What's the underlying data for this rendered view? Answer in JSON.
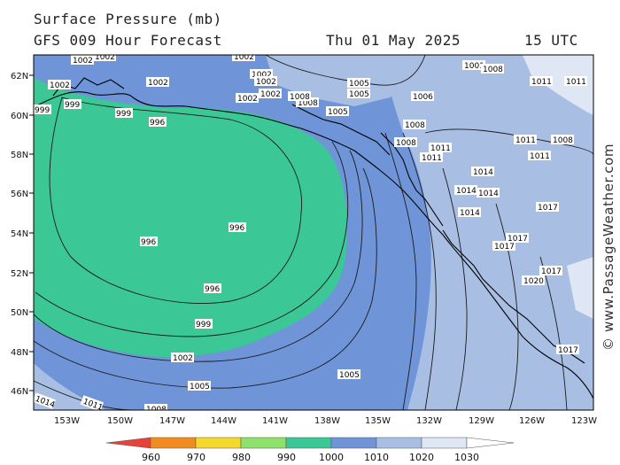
{
  "header": {
    "title": "Surface Pressure (mb)",
    "model": "GFS 009 Hour Forecast",
    "date": "Thu 01 May 2025",
    "time": "15 UTC"
  },
  "credit": "© www.PassageWeather.com",
  "axes": {
    "lat_labels": [
      "62N",
      "60N",
      "58N",
      "56N",
      "54N",
      "52N",
      "50N",
      "48N",
      "46N"
    ],
    "lon_labels": [
      "153W",
      "150W",
      "147W",
      "144W",
      "141W",
      "138W",
      "135W",
      "132W",
      "129W",
      "126W",
      "123W"
    ]
  },
  "colorbar": {
    "labels": [
      "960",
      "970",
      "980",
      "990",
      "1000",
      "1010",
      "1020",
      "1030"
    ],
    "colors": [
      "#e8413a",
      "#f28c1e",
      "#f4d92c",
      "#8ee26c",
      "#3cc797",
      "#6f95d8",
      "#a8bfe3",
      "#dfe6f4"
    ]
  },
  "isobars": [
    {
      "text": "1002"
    },
    {
      "text": "1002"
    },
    {
      "text": "1002"
    },
    {
      "text": "1002"
    },
    {
      "text": "1002"
    },
    {
      "text": "1002"
    },
    {
      "text": "1002"
    },
    {
      "text": "1002"
    },
    {
      "text": "1002"
    },
    {
      "text": "1005"
    },
    {
      "text": "1005"
    },
    {
      "text": "1005"
    },
    {
      "text": "1006"
    },
    {
      "text": "1008"
    },
    {
      "text": "1008"
    },
    {
      "text": "1008"
    },
    {
      "text": "1008"
    },
    {
      "text": "1011"
    },
    {
      "text": "1011"
    },
    {
      "text": "1011"
    },
    {
      "text": "1011"
    },
    {
      "text": "1014"
    },
    {
      "text": "1014"
    },
    {
      "text": "1014"
    },
    {
      "text": "1014"
    },
    {
      "text": "1017"
    },
    {
      "text": "1017"
    },
    {
      "text": "1017"
    },
    {
      "text": "1017"
    },
    {
      "text": "1017"
    },
    {
      "text": "1020"
    },
    {
      "text": "999"
    },
    {
      "text": "999"
    },
    {
      "text": "999"
    },
    {
      "text": "996"
    },
    {
      "text": "996"
    },
    {
      "text": "996"
    },
    {
      "text": "996"
    },
    {
      "text": "999"
    },
    {
      "text": "1002"
    },
    {
      "text": "1005"
    },
    {
      "text": "1005"
    },
    {
      "text": "1014"
    },
    {
      "text": "1011"
    },
    {
      "text": "1008"
    },
    {
      "text": "1001"
    },
    {
      "text": "1008"
    },
    {
      "text": "1008"
    },
    {
      "text": "1011"
    },
    {
      "text": "1011"
    }
  ]
}
